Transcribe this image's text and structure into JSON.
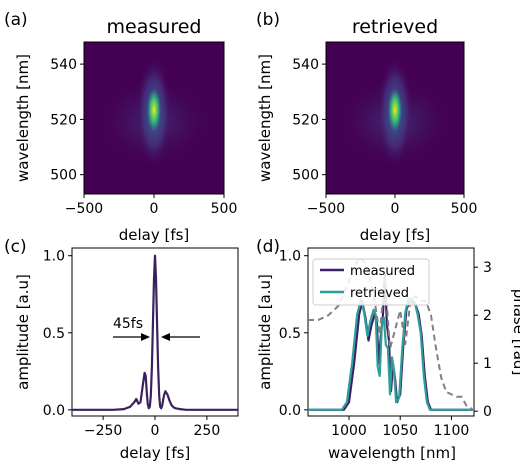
{
  "panel_labels": [
    "(a)",
    "(b)",
    "(c)",
    "(d)"
  ],
  "chart_data": [
    {
      "type": "heatmap",
      "panel": "(a)",
      "title": "measured",
      "xlabel": "delay [fs]",
      "ylabel": "wavelength [nm]",
      "xlim": [
        -500,
        500
      ],
      "ylim": [
        493,
        548
      ],
      "x_ticks": [
        -500,
        0,
        500
      ],
      "y_ticks": [
        500,
        520,
        540
      ],
      "colormap": "viridis",
      "peak": {
        "delay": 0,
        "wavelength": 521
      },
      "intensity_profile": {
        "wavelength": [
          500,
          505,
          510,
          515,
          520,
          522,
          525,
          530,
          535,
          540
        ],
        "relative": [
          0.05,
          0.12,
          0.25,
          0.5,
          0.95,
          1.0,
          0.7,
          0.3,
          0.15,
          0.05
        ]
      }
    },
    {
      "type": "heatmap",
      "panel": "(b)",
      "title": "retrieved",
      "xlabel": "delay [fs]",
      "ylabel": "wavelength [nm]",
      "xlim": [
        -500,
        500
      ],
      "ylim": [
        493,
        548
      ],
      "x_ticks": [
        -500,
        0,
        500
      ],
      "y_ticks": [
        500,
        520,
        540
      ],
      "colormap": "viridis",
      "peak": {
        "delay": 0,
        "wavelength": 521
      },
      "intensity_profile": {
        "wavelength": [
          500,
          505,
          510,
          515,
          520,
          522,
          525,
          530,
          535,
          540
        ],
        "relative": [
          0.05,
          0.12,
          0.25,
          0.5,
          0.95,
          1.0,
          0.7,
          0.3,
          0.15,
          0.05
        ]
      }
    },
    {
      "type": "line",
      "panel": "(c)",
      "xlabel": "delay [fs]",
      "ylabel": "amplitude [a.u]",
      "xlim": [
        -400,
        400
      ],
      "ylim": [
        -0.04,
        1.05
      ],
      "x_ticks": [
        -250,
        0,
        250
      ],
      "y_ticks": [
        0.0,
        0.5,
        1.0
      ],
      "annotation": "45fs",
      "annotation_y": 0.5,
      "series": [
        {
          "color": "#3b1f5f",
          "x": [
            -400,
            -200,
            -150,
            -120,
            -100,
            -90,
            -80,
            -70,
            -60,
            -50,
            -45,
            -40,
            -35,
            -30,
            -25,
            -20,
            -15,
            -10,
            -5,
            0,
            5,
            10,
            15,
            20,
            25,
            30,
            35,
            40,
            45,
            50,
            60,
            70,
            80,
            90,
            100,
            120,
            150,
            200,
            400
          ],
          "y": [
            0.0,
            0.0,
            0.005,
            0.02,
            0.05,
            0.07,
            0.04,
            0.05,
            0.15,
            0.24,
            0.22,
            0.12,
            0.04,
            0.01,
            0.02,
            0.09,
            0.28,
            0.55,
            0.85,
            1.0,
            0.85,
            0.55,
            0.28,
            0.09,
            0.02,
            0.01,
            0.03,
            0.07,
            0.1,
            0.12,
            0.1,
            0.06,
            0.03,
            0.015,
            0.01,
            0.005,
            0.0,
            0.0,
            0.0
          ]
        }
      ]
    },
    {
      "type": "line",
      "panel": "(d)",
      "xlabel": "wavelength [nm]",
      "ylabel": "amplitude [a.u]",
      "y2label": "phase [rad]",
      "xlim": [
        960,
        1122
      ],
      "ylim": [
        -0.04,
        1.05
      ],
      "y2lim": [
        -0.1,
        3.4
      ],
      "x_ticks": [
        1000,
        1050,
        1100
      ],
      "y_ticks": [
        0.0,
        0.5,
        1.0
      ],
      "y2_ticks": [
        0,
        1,
        2,
        3
      ],
      "legend_position": "top-left",
      "series": [
        {
          "name": "measured",
          "color": "#3b1f6b",
          "x": [
            960,
            995,
            1000,
            1005,
            1010,
            1013,
            1016,
            1019,
            1022,
            1025,
            1027,
            1029,
            1031,
            1033,
            1035,
            1037,
            1039,
            1041,
            1043,
            1045,
            1047,
            1050,
            1053,
            1056,
            1059,
            1062,
            1065,
            1068,
            1071,
            1074,
            1077,
            1080,
            1085,
            1122
          ],
          "y": [
            0.0,
            0.0,
            0.05,
            0.3,
            0.62,
            0.7,
            0.6,
            0.45,
            0.55,
            0.62,
            0.58,
            0.3,
            0.48,
            0.6,
            0.88,
            0.55,
            0.45,
            0.12,
            0.3,
            0.2,
            0.05,
            0.1,
            0.42,
            0.65,
            0.7,
            0.7,
            0.68,
            0.62,
            0.48,
            0.22,
            0.05,
            0.0,
            0.0,
            0.0
          ]
        },
        {
          "name": "retrieved",
          "color": "#2e9e96",
          "x": [
            960,
            993,
            998,
            1003,
            1008,
            1012,
            1015,
            1018,
            1021,
            1024,
            1026,
            1028,
            1030,
            1032,
            1034,
            1036,
            1038,
            1040,
            1042,
            1044,
            1046,
            1049,
            1052,
            1055,
            1058,
            1061,
            1064,
            1067,
            1070,
            1073,
            1076,
            1079,
            1085,
            1122
          ],
          "y": [
            0.0,
            0.0,
            0.05,
            0.3,
            0.62,
            0.72,
            0.62,
            0.48,
            0.58,
            0.65,
            0.62,
            0.28,
            0.22,
            0.55,
            0.6,
            0.42,
            0.4,
            0.1,
            0.34,
            0.25,
            0.05,
            0.08,
            0.4,
            0.63,
            0.72,
            0.72,
            0.7,
            0.62,
            0.5,
            0.22,
            0.05,
            0.0,
            0.0,
            0.0
          ]
        },
        {
          "name": "",
          "axis": "y2",
          "style": "dashed",
          "color": "#808080",
          "x": [
            960,
            970,
            980,
            990,
            1000,
            1005,
            1010,
            1015,
            1020,
            1025,
            1030,
            1035,
            1040,
            1045,
            1050,
            1055,
            1060,
            1065,
            1070,
            1075,
            1080,
            1085,
            1090,
            1095,
            1100,
            1105,
            1110,
            1115,
            1120
          ],
          "y": [
            1.9,
            1.9,
            2.0,
            2.2,
            2.7,
            3.0,
            3.2,
            3.1,
            2.8,
            2.3,
            1.6,
            2.8,
            1.3,
            1.7,
            2.1,
            1.4,
            2.3,
            2.4,
            2.3,
            2.3,
            2.0,
            1.3,
            0.7,
            0.4,
            0.35,
            0.3,
            0.3,
            0.1,
            0.05
          ]
        }
      ]
    }
  ]
}
